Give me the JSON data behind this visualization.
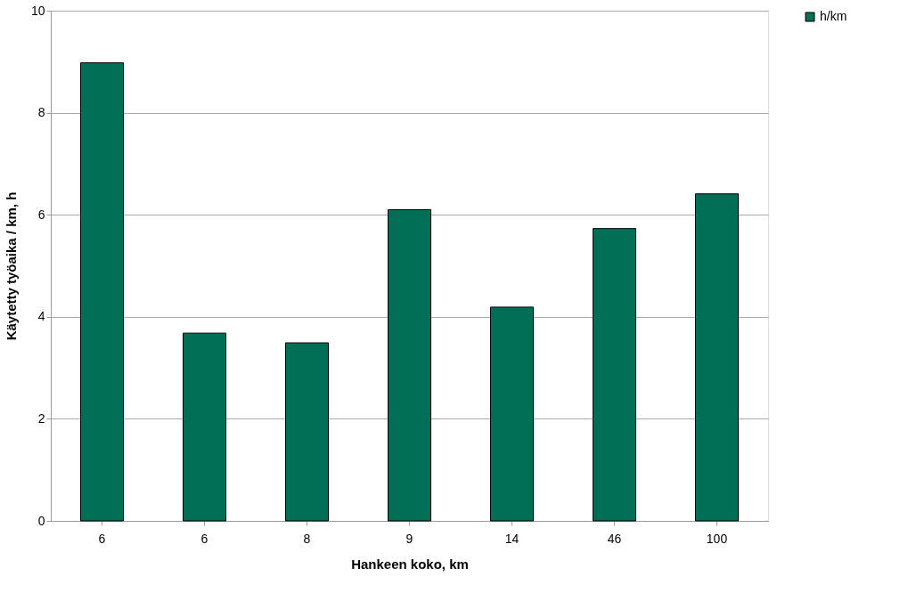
{
  "chart_data": {
    "type": "bar",
    "xlabel": "Hankeen koko, km",
    "ylabel": "Käytetty työaika / km, h",
    "categories": [
      "6",
      "6",
      "8",
      "9",
      "14",
      "46",
      "100"
    ],
    "series": [
      {
        "name": "h/km",
        "color": "#006f55",
        "values": [
          8.98,
          3.68,
          3.49,
          6.1,
          4.19,
          5.73,
          6.41
        ]
      }
    ],
    "ylim": [
      0,
      10
    ],
    "yticks": [
      0,
      2,
      4,
      6,
      8,
      10
    ],
    "grid": "y",
    "legend": "top right"
  }
}
